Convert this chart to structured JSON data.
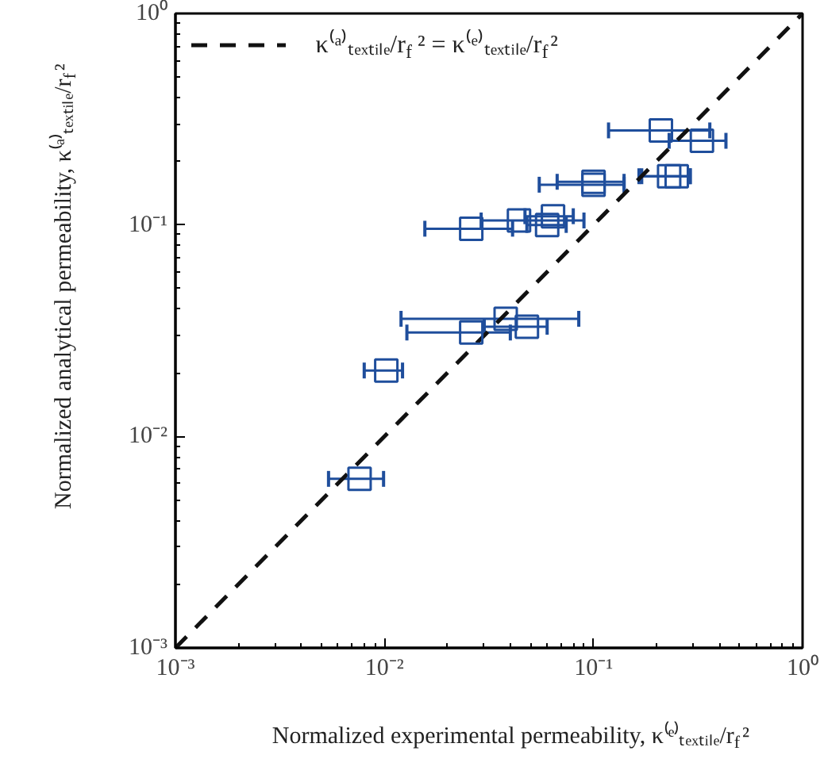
{
  "chart_data": {
    "type": "scatter",
    "xlabel": "Normalized experimental permeability, κ⁽ᵉ⁾ₜₑₓₜᵢₗₑ/r$_{f}$²",
    "ylabel": "Normalized analytical permeability, κ⁽ᵃ⁾ₜₑₓₜᵢₗₑ/r$_{f}$²",
    "log": "xy",
    "grid": false,
    "legend": "top left",
    "marker": "square",
    "xlim": [
      0.001,
      1
    ],
    "ylim": [
      0.001,
      1
    ],
    "xticks": [
      {
        "value": 0.001,
        "label": "10⁻³"
      },
      {
        "value": 0.01,
        "label": "10⁻²"
      },
      {
        "value": 0.1,
        "label": "10⁻¹"
      },
      {
        "value": 1,
        "label": "10⁰"
      }
    ],
    "yticks": [
      {
        "value": 0.001,
        "label": "10⁻³"
      },
      {
        "value": 0.01,
        "label": "10⁻²"
      },
      {
        "value": 0.1,
        "label": "10⁻¹"
      },
      {
        "value": 1,
        "label": "10⁰"
      }
    ],
    "series": [
      {
        "type": "line",
        "name": "κ⁽ᵃ⁾ₜₑₓₜᵢₗₑ/r$_{f}$² = κ⁽ᵉ⁾ₜₑₓₜᵢₗₑ/r$_{f}$²",
        "color": "#111111",
        "line_style": "dashed",
        "marker": "none",
        "x": [
          0.001,
          1
        ],
        "values": [
          0.001,
          1
        ]
      },
      {
        "color": "#1f4e9c",
        "x": [
          0.21,
          0.33,
          0.23,
          0.25,
          0.1,
          0.1,
          0.026,
          0.044,
          0.06,
          0.064,
          0.026,
          0.038,
          0.048,
          0.0102,
          0.0076
        ],
        "values": [
          0.28,
          0.25,
          0.17,
          0.17,
          0.155,
          0.16,
          0.096,
          0.105,
          0.1,
          0.11,
          0.031,
          0.036,
          0.033,
          0.0205,
          0.0063
        ],
        "xerrors": [
          [
            0.118,
            0.36
          ],
          [
            0.23,
            0.43
          ],
          [
            0.165,
            0.29
          ],
          [
            0.17,
            0.29
          ],
          [
            0.055,
            0.14
          ],
          [
            0.067,
            0.14
          ],
          [
            0.0156,
            0.041
          ],
          [
            0.029,
            0.09
          ],
          [
            0.048,
            0.074
          ],
          [
            0.047,
            0.08
          ],
          [
            0.0128,
            0.04
          ],
          [
            0.012,
            0.085
          ],
          [
            0.03,
            0.06
          ],
          [
            0.008,
            0.0122
          ],
          [
            0.0054,
            0.0099
          ]
        ]
      }
    ]
  }
}
